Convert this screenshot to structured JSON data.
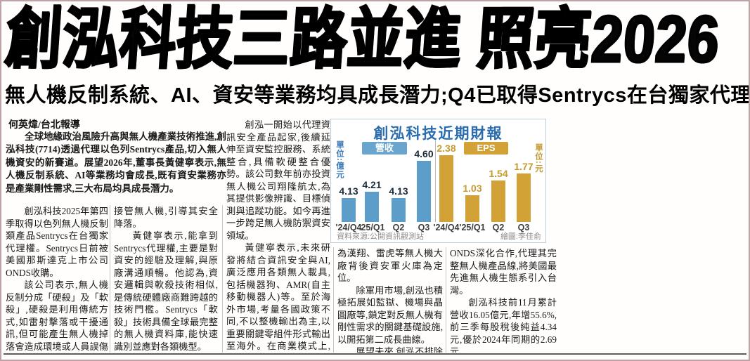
{
  "page": {
    "headline": "創泓科技三路並進 照亮2026",
    "subheadline": "無人機反制系統、AI、資安等業務均具成長潛力;Q4已取得Sentrycs在台獨家代理權",
    "byline": "何英煒/台北報導"
  },
  "article": {
    "lead": "全球地緣政治風險升高與無人機產業技術推進,創泓科技(7714)透過代理以色列Sentrycs產品,切入無人機資安的新賽道。展望2026年,董事長黃健寧表示,無人機反制系統、AI等業務均會成長,既有資安業務亦是產業剛性需求,三大布局均具成長潛力。",
    "col1_p1": "創泓科技2025年第四季取得以色列無人機反制類產品Sentrycs在台獨家代理權。Sentrycs日前被美國那斯達克上市公司ONDS收購。",
    "col1_p2": "該公司表示,無人機反制分成「硬殺」及「軟殺」,硬殺是利用傳統方式,如雷射擊落或干擾通訊,但可能產生無人機掉落會造成環境或人員誤傷的風險,至於「軟殺」則是破解通訊協定,",
    "col2_p1": "接管無人機,引導其安全降落。",
    "col2_p2": "黃健寧表示,能拿到Sentrycs代理權,主要是對資安的經驗及理解,與原廠溝通順暢。他認為,資安邏輯與軟殺技術相似,是傳統硬體廠商難跨越的技術門檻。Sentrycs「軟殺」技術具備全球最完整的無人機資料庫,能快速識別並應對各類機型。",
    "col3_p1": "創泓一開始以代理資訊安全產品起家,後續延伸至資安監控服務、系統整合,具備軟硬整合優勢。該公司數年前亦投資無人機公司翔隆航太,為其提供影像辨識、目標偵測與追蹤功能。如今再進一步跨足無人機防禦資安領域。",
    "col3_p2": "黃健寧表示,未來研發將結合資訊安全與AI,廣泛應用各類無人載具,包括機器狗、AMR(自主移動機器人)等。至於海外市場,考量各國政策不同,不以整機輸出為主,以重要關鍵零組件形式輸出至海外。在商業模式上,創泓採取「老二哲學」,不直接參與標案,以成",
    "col4_p1": "為漢翔、雷虎等無人機大廠背後資安軍火庫為定位。",
    "col4_p2": "除軍用市場,創泓也積極拓展如監獄、機場與晶圓廠等,鎖定對反無人機有剛性需求的關鍵基礎設施,以開拓第二成長曲線。",
    "col4_p3": "展望未來,創泓不排除與",
    "col5_p1": "ONDS深化合作,代理其完整無人機產品線,將美國最先進無人機生態系引入台灣。",
    "col5_p2": "創泓科技前11月累計營收16.05億元,年增55.6%,前三季每股稅後純益4.34元,優於2024年同期的2.69元。"
  },
  "chart_data": {
    "type": "bar",
    "title": "創泓科技近期財報",
    "categories": [
      "'24/Q4",
      "'25/Q1",
      "Q2",
      "Q3"
    ],
    "series": [
      {
        "name": "營收",
        "unit_label": "單位:億元",
        "color": "#5c9dc9",
        "value_label_color": "#1c2b3a",
        "values": [
          "4.13",
          "4.21",
          "4.13",
          "4.60"
        ]
      },
      {
        "name": "EPS",
        "unit_label": "單位:元",
        "color": "#d3a237",
        "value_label_color": "#c59b30",
        "values": [
          "2.38",
          "1.03",
          "1.54",
          "1.77"
        ]
      }
    ],
    "legend_position": "top",
    "grid": false,
    "source": "資料來源:公開資訊觀測站",
    "credit": "繪圖:李佳俞"
  }
}
